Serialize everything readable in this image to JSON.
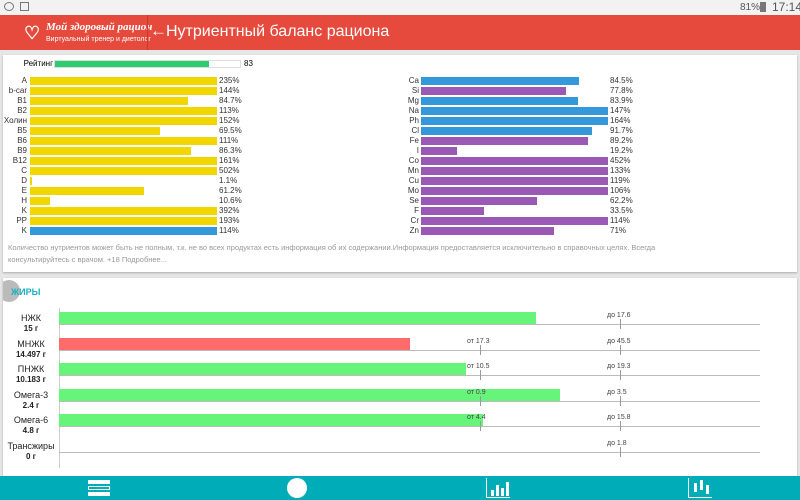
{
  "status": {
    "battery": "81%",
    "time": "17:14"
  },
  "header": {
    "logo_title": "Мой здоровый рацион",
    "logo_subtitle": "Виртуальный тренер и диетолог",
    "title": "Нутриентный баланс рациона"
  },
  "rating": {
    "label": "Рейтинг",
    "value": 83,
    "color": "#2ecc71"
  },
  "vitamins": [
    {
      "label": "A",
      "value": "235%",
      "pct": 235,
      "color": "#f2d600"
    },
    {
      "label": "b-car",
      "value": "144%",
      "pct": 144,
      "color": "#f2d600"
    },
    {
      "label": "B1",
      "value": "84.7%",
      "pct": 84.7,
      "color": "#f2d600"
    },
    {
      "label": "B2",
      "value": "113%",
      "pct": 113,
      "color": "#f2d600"
    },
    {
      "label": "Холин",
      "value": "152%",
      "pct": 152,
      "color": "#f2d600"
    },
    {
      "label": "B5",
      "value": "69.5%",
      "pct": 69.5,
      "color": "#f2d600"
    },
    {
      "label": "B6",
      "value": "111%",
      "pct": 111,
      "color": "#f2d600"
    },
    {
      "label": "B9",
      "value": "86.3%",
      "pct": 86.3,
      "color": "#f2d600"
    },
    {
      "label": "B12",
      "value": "161%",
      "pct": 161,
      "color": "#f2d600"
    },
    {
      "label": "C",
      "value": "502%",
      "pct": 502,
      "color": "#f2d600"
    },
    {
      "label": "D",
      "value": "1.1%",
      "pct": 1.1,
      "color": "#f2d600"
    },
    {
      "label": "E",
      "value": "61.2%",
      "pct": 61.2,
      "color": "#f2d600"
    },
    {
      "label": "H",
      "value": "10.6%",
      "pct": 10.6,
      "color": "#f2d600"
    },
    {
      "label": "K",
      "value": "392%",
      "pct": 392,
      "color": "#f2d600"
    },
    {
      "label": "PP",
      "value": "193%",
      "pct": 193,
      "color": "#f2d600"
    },
    {
      "label": "K",
      "value": "114%",
      "pct": 114,
      "color": "#3498db"
    }
  ],
  "minerals": [
    {
      "label": "Ca",
      "value": "84.5%",
      "pct": 84.5,
      "color": "#3498db"
    },
    {
      "label": "Si",
      "value": "77.8%",
      "pct": 77.8,
      "color": "#9b59b6"
    },
    {
      "label": "Mg",
      "value": "83.9%",
      "pct": 83.9,
      "color": "#3498db"
    },
    {
      "label": "Na",
      "value": "147%",
      "pct": 147,
      "color": "#3498db"
    },
    {
      "label": "Ph",
      "value": "164%",
      "pct": 164,
      "color": "#3498db"
    },
    {
      "label": "Cl",
      "value": "91.7%",
      "pct": 91.7,
      "color": "#3498db"
    },
    {
      "label": "Fe",
      "value": "89.2%",
      "pct": 89.2,
      "color": "#9b59b6"
    },
    {
      "label": "I",
      "value": "19.2%",
      "pct": 19.2,
      "color": "#9b59b6"
    },
    {
      "label": "Co",
      "value": "452%",
      "pct": 452,
      "color": "#9b59b6"
    },
    {
      "label": "Mn",
      "value": "133%",
      "pct": 133,
      "color": "#9b59b6"
    },
    {
      "label": "Cu",
      "value": "119%",
      "pct": 119,
      "color": "#9b59b6"
    },
    {
      "label": "Mo",
      "value": "106%",
      "pct": 106,
      "color": "#9b59b6"
    },
    {
      "label": "Se",
      "value": "62.2%",
      "pct": 62.2,
      "color": "#9b59b6"
    },
    {
      "label": "F",
      "value": "33.5%",
      "pct": 33.5,
      "color": "#9b59b6"
    },
    {
      "label": "Cr",
      "value": "114%",
      "pct": 114,
      "color": "#9b59b6"
    },
    {
      "label": "Zn",
      "value": "71%",
      "pct": 71,
      "color": "#9b59b6"
    }
  ],
  "disclaimer": "Количество нутриентов может быть не полным, т.к. не во всех продуктах есть информация об их содержании.Информация предоставляется исключительно в справочных целях. Всегда консультируйтесь с врачом. +18 Подробнее...",
  "fats": {
    "title": "ЖИРЫ",
    "rows": [
      {
        "name": "НЖК",
        "amount": "15 г",
        "fill": 0.68,
        "color": "#66f57a",
        "from": "",
        "to": "до 17.6"
      },
      {
        "name": "МНЖК",
        "amount": "14.497 г",
        "fill": 0.5,
        "color": "#ff6b6b",
        "from": "от 17.3",
        "to": "до 45.5"
      },
      {
        "name": "ПНЖК",
        "amount": "10.183 г",
        "fill": 0.58,
        "color": "#66f57a",
        "from": "от 10.5",
        "to": "до 19.3"
      },
      {
        "name": "Омега-3",
        "amount": "2.4 г",
        "fill": 0.715,
        "color": "#66f57a",
        "from": "от 0.9",
        "to": "до 3.5"
      },
      {
        "name": "Омега-6",
        "amount": "4.8 г",
        "fill": 0.605,
        "color": "#66f57a",
        "from": "от 4.4",
        "to": "до 15.8"
      },
      {
        "name": "Трансжиры",
        "amount": "0 г",
        "fill": 0,
        "color": "#66f57a",
        "from": "",
        "to": "до 1.8"
      }
    ]
  }
}
